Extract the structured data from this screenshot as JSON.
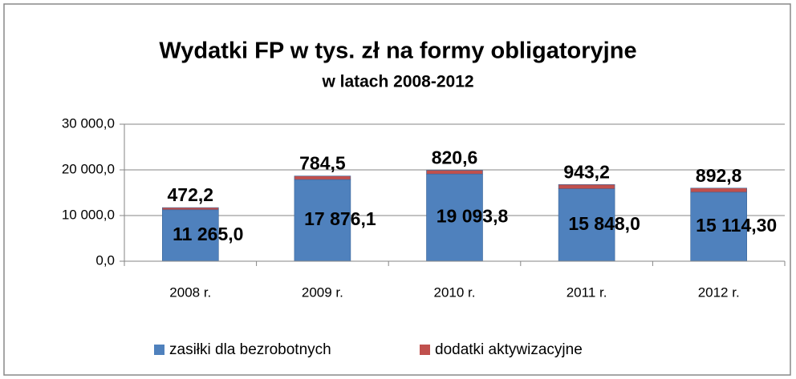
{
  "chart_data": {
    "type": "stacked_bar",
    "title": "Wydatki FP w tys. zł na formy obligatoryjne",
    "subtitle": "w latach 2008-2012",
    "categories": [
      "2008 r.",
      "2009 r.",
      "2010 r.",
      "2011 r.",
      "2012 r."
    ],
    "series": [
      {
        "name": "zasiłki dla bezrobotnych",
        "color": "#4f81bd",
        "values": [
          11265.0,
          17876.1,
          19093.8,
          15848.0,
          15114.3
        ],
        "value_labels": [
          "11 265,0",
          "17 876,1",
          "19 093,8",
          "15 848,0",
          "15 114,30"
        ]
      },
      {
        "name": "dodatki aktywizacyjne",
        "color": "#c0504d",
        "values": [
          472.2,
          784.5,
          820.6,
          943.2,
          892.8
        ],
        "value_labels": [
          "472,2",
          "784,5",
          "820,6",
          "943,2",
          "892,8"
        ]
      }
    ],
    "ylim": [
      0,
      30000
    ],
    "yticks": [
      {
        "value": 0,
        "label": "0,0"
      },
      {
        "value": 10000,
        "label": "10 000,0"
      },
      {
        "value": 20000,
        "label": "20 000,0"
      },
      {
        "value": 30000,
        "label": "30 000,0"
      }
    ],
    "grid": true,
    "legend": "bottom"
  }
}
